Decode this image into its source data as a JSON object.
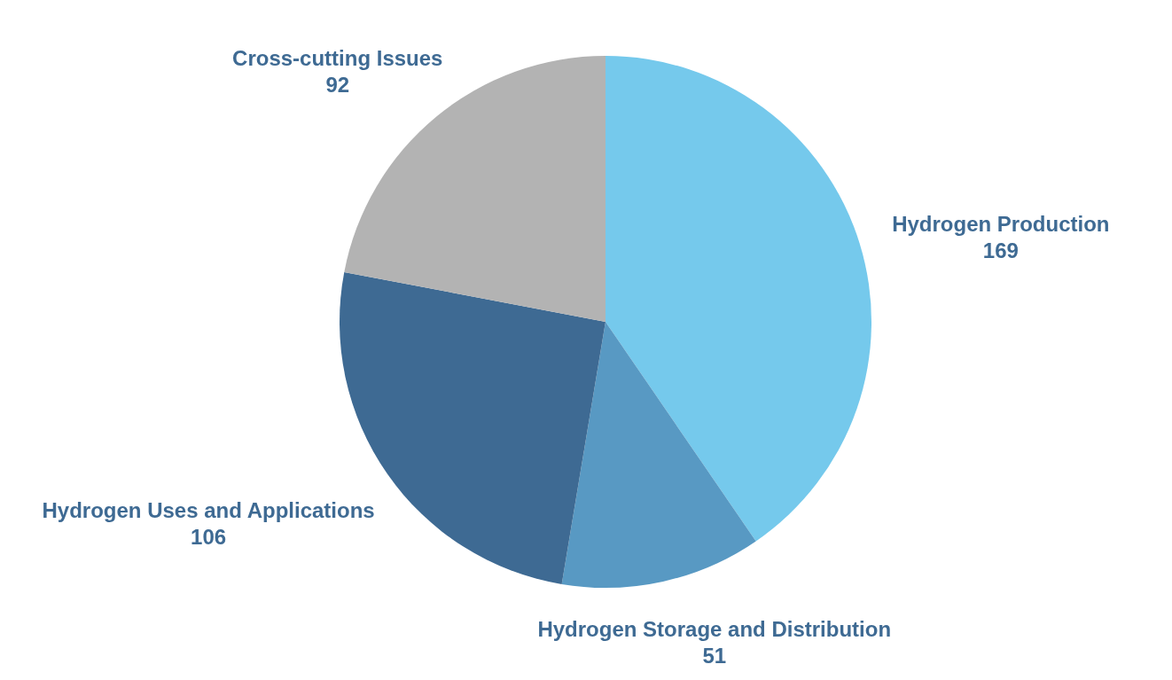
{
  "chart_data": {
    "type": "pie",
    "categories": [
      "Hydrogen Production",
      "Hydrogen Storage and Distribution",
      "Hydrogen Uses and Applications",
      "Cross-cutting Issues"
    ],
    "values": [
      169,
      51,
      106,
      92
    ],
    "colors": [
      "#75c9ec",
      "#5899c3",
      "#3e6a93",
      "#b3b3b3"
    ],
    "data_labels": true
  }
}
